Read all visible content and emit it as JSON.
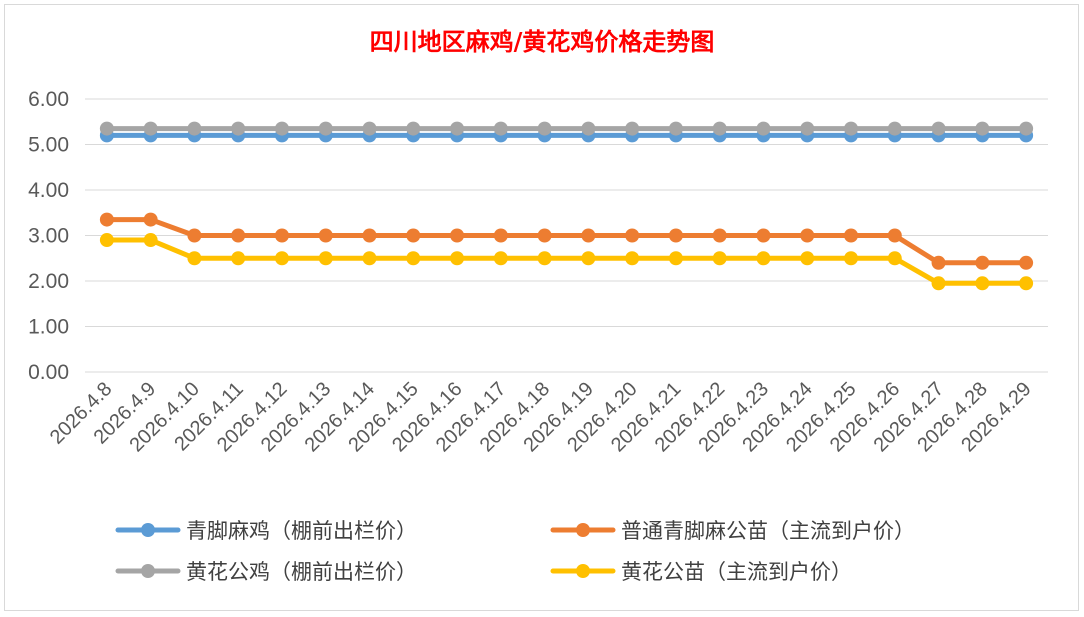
{
  "chart_data": {
    "type": "line",
    "title": "四川地区麻鸡/黄花鸡价格走势图",
    "xlabel": "",
    "ylabel": "",
    "ylim": [
      0,
      6
    ],
    "yticks": [
      "0.00",
      "1.00",
      "2.00",
      "3.00",
      "4.00",
      "5.00",
      "6.00"
    ],
    "grid": true,
    "legend_position": "bottom",
    "categories": [
      "2026.4.8",
      "2026.4.9",
      "2026.4.10",
      "2026.4.11",
      "2026.4.12",
      "2026.4.13",
      "2026.4.14",
      "2026.4.15",
      "2026.4.16",
      "2026.4.17",
      "2026.4.18",
      "2026.4.19",
      "2026.4.20",
      "2026.4.21",
      "2026.4.22",
      "2026.4.23",
      "2026.4.24",
      "2026.4.25",
      "2026.4.26",
      "2026.4.27",
      "2026.4.28",
      "2026.4.29"
    ],
    "series": [
      {
        "name": "青脚麻鸡（棚前出栏价）",
        "color": "#5b9bd5",
        "values": [
          5.2,
          5.2,
          5.2,
          5.2,
          5.2,
          5.2,
          5.2,
          5.2,
          5.2,
          5.2,
          5.2,
          5.2,
          5.2,
          5.2,
          5.2,
          5.2,
          5.2,
          5.2,
          5.2,
          5.2,
          5.2,
          5.2
        ]
      },
      {
        "name": "普通青脚麻公苗（主流到户价）",
        "color": "#ed7d31",
        "values": [
          3.35,
          3.35,
          3.0,
          3.0,
          3.0,
          3.0,
          3.0,
          3.0,
          3.0,
          3.0,
          3.0,
          3.0,
          3.0,
          3.0,
          3.0,
          3.0,
          3.0,
          3.0,
          3.0,
          2.4,
          2.4,
          2.4
        ]
      },
      {
        "name": "黄花公鸡（棚前出栏价）",
        "color": "#a5a5a5",
        "values": [
          5.35,
          5.35,
          5.35,
          5.35,
          5.35,
          5.35,
          5.35,
          5.35,
          5.35,
          5.35,
          5.35,
          5.35,
          5.35,
          5.35,
          5.35,
          5.35,
          5.35,
          5.35,
          5.35,
          5.35,
          5.35,
          5.35
        ]
      },
      {
        "name": "黄花公苗（主流到户价）",
        "color": "#ffc000",
        "values": [
          2.9,
          2.9,
          2.5,
          2.5,
          2.5,
          2.5,
          2.5,
          2.5,
          2.5,
          2.5,
          2.5,
          2.5,
          2.5,
          2.5,
          2.5,
          2.5,
          2.5,
          2.5,
          2.5,
          1.95,
          1.95,
          1.95
        ]
      }
    ],
    "gridline_color": "#d9d9d9"
  }
}
